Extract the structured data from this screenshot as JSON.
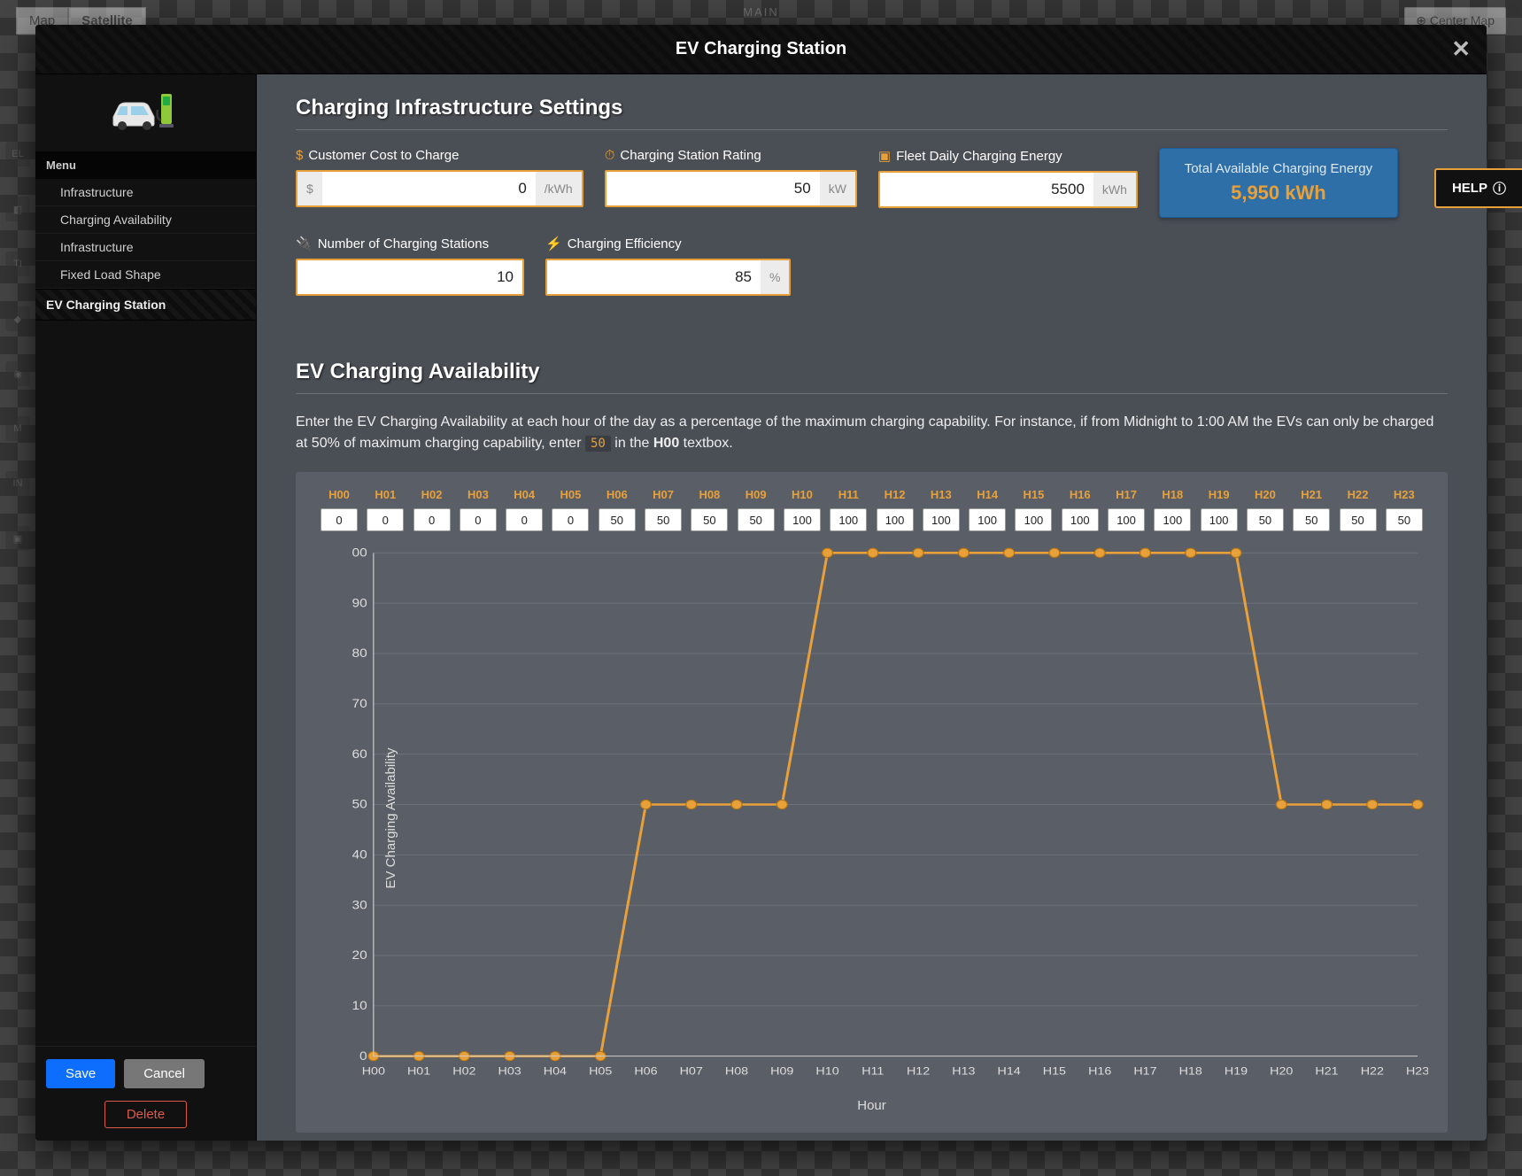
{
  "background": {
    "map_tab": "Map",
    "satellite_tab": "Satellite",
    "main_label": "MAIN",
    "center_map": "Center Map"
  },
  "modal": {
    "title": "EV Charging Station"
  },
  "sidebar": {
    "menu_header": "Menu",
    "items": [
      "Infrastructure",
      "Charging Availability",
      "Infrastructure",
      "Fixed Load Shape"
    ],
    "footer_item": "EV Charging Station",
    "save": "Save",
    "cancel": "Cancel",
    "delete": "Delete"
  },
  "settings": {
    "title": "Charging Infrastructure Settings",
    "cost_label": "Customer Cost to Charge",
    "cost_value": "0",
    "cost_prefix": "$",
    "cost_suffix": "/kWh",
    "rating_label": "Charging Station Rating",
    "rating_value": "50",
    "rating_suffix": "kW",
    "fleet_label": "Fleet Daily Charging Energy",
    "fleet_value": "5500",
    "fleet_suffix": "kWh",
    "total_label": "Total Available Charging Energy",
    "total_value": "5,950 kWh",
    "stations_label": "Number of Charging Stations",
    "stations_value": "10",
    "eff_label": "Charging Efficiency",
    "eff_value": "85",
    "eff_suffix": "%"
  },
  "availability": {
    "title": "EV Charging Availability",
    "desc_pre": "Enter the EV Charging Availability at each hour of the day as a percentage of the maximum charging capability. For instance, if from Midnight to 1:00 AM the EVs can only be charged at 50% of maximum charging capability, enter ",
    "desc_code": "50",
    "desc_mid": " in the ",
    "desc_bold": "H00",
    "desc_post": " textbox.",
    "hours": [
      "H00",
      "H01",
      "H02",
      "H03",
      "H04",
      "H05",
      "H06",
      "H07",
      "H08",
      "H09",
      "H10",
      "H11",
      "H12",
      "H13",
      "H14",
      "H15",
      "H16",
      "H17",
      "H18",
      "H19",
      "H20",
      "H21",
      "H22",
      "H23"
    ],
    "values": [
      0,
      0,
      0,
      0,
      0,
      0,
      50,
      50,
      50,
      50,
      100,
      100,
      100,
      100,
      100,
      100,
      100,
      100,
      100,
      100,
      50,
      50,
      50,
      50
    ],
    "y_label": "EV Charging Availability",
    "x_label": "Hour",
    "chart": {
      "line_color": "#e8a13a",
      "marker_color": "#e8a13a",
      "grid_color": "#6d7179",
      "axis_color": "#cccccc",
      "bg": "#5a5e66",
      "ylim": [
        0,
        100
      ],
      "ytick_step": 10,
      "marker_radius": 5,
      "line_width": 2.5
    }
  },
  "help": {
    "label": "HELP"
  }
}
